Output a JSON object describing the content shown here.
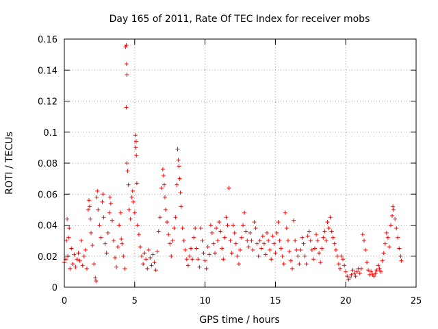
{
  "chart_data": {
    "type": "scatter",
    "title": "Day 165 of 2011, Rate Of TEC Index for receiver mobs",
    "xlabel": "GPS time / hours",
    "ylabel": "ROTI / TECUs",
    "xlim": [
      0,
      25
    ],
    "ylim": [
      0,
      0.16
    ],
    "x_ticks": [
      "0",
      "5",
      "10",
      "15",
      "20",
      "25"
    ],
    "y_ticks": [
      "0",
      "0.02",
      "0.04",
      "0.06",
      "0.08",
      "0.1",
      "0.12",
      "0.14",
      "0.16"
    ],
    "grid": true,
    "marker": "+",
    "color": "#ff0000",
    "series": [
      {
        "points": [
          [
            0.0,
            0.016
          ],
          [
            0.1,
            0.018
          ],
          [
            0.15,
            0.03
          ],
          [
            0.2,
            0.044
          ],
          [
            0.25,
            0.02
          ],
          [
            0.3,
            0.032
          ],
          [
            0.35,
            0.038
          ],
          [
            0.4,
            0.012
          ],
          [
            0.5,
            0.025
          ],
          [
            0.6,
            0.015
          ],
          [
            0.7,
            0.021
          ],
          [
            0.8,
            0.013
          ],
          [
            0.9,
            0.018
          ],
          [
            1.0,
            0.022
          ],
          [
            1.1,
            0.017
          ],
          [
            1.2,
            0.03
          ],
          [
            1.3,
            0.014
          ],
          [
            1.4,
            0.02
          ],
          [
            1.5,
            0.024
          ],
          [
            1.6,
            0.012
          ],
          [
            1.7,
            0.05
          ],
          [
            1.75,
            0.056
          ],
          [
            1.8,
            0.052
          ],
          [
            1.85,
            0.044
          ],
          [
            1.9,
            0.035
          ],
          [
            2.0,
            0.027
          ],
          [
            2.1,
            0.015
          ],
          [
            2.2,
            0.006
          ],
          [
            2.25,
            0.004
          ],
          [
            2.3,
            0.058
          ],
          [
            2.35,
            0.062
          ],
          [
            2.4,
            0.05
          ],
          [
            2.5,
            0.04
          ],
          [
            2.6,
            0.032
          ],
          [
            2.7,
            0.055
          ],
          [
            2.75,
            0.06
          ],
          [
            2.8,
            0.045
          ],
          [
            2.9,
            0.028
          ],
          [
            3.0,
            0.022
          ],
          [
            3.1,
            0.035
          ],
          [
            3.2,
            0.048
          ],
          [
            3.25,
            0.058
          ],
          [
            3.3,
            0.054
          ],
          [
            3.4,
            0.043
          ],
          [
            3.5,
            0.03
          ],
          [
            3.6,
            0.019
          ],
          [
            3.7,
            0.013
          ],
          [
            3.8,
            0.026
          ],
          [
            3.9,
            0.04
          ],
          [
            4.0,
            0.048
          ],
          [
            4.05,
            0.031
          ],
          [
            4.1,
            0.028
          ],
          [
            4.2,
            0.02
          ],
          [
            4.3,
            0.012
          ],
          [
            4.35,
            0.155
          ],
          [
            4.4,
            0.156
          ],
          [
            4.42,
            0.144
          ],
          [
            4.45,
            0.137
          ],
          [
            4.4,
            0.116
          ],
          [
            4.45,
            0.08
          ],
          [
            4.5,
            0.075
          ],
          [
            4.55,
            0.066
          ],
          [
            4.6,
            0.05
          ],
          [
            4.7,
            0.044
          ],
          [
            4.8,
            0.058
          ],
          [
            4.85,
            0.062
          ],
          [
            4.9,
            0.055
          ],
          [
            5.0,
            0.048
          ],
          [
            5.05,
            0.098
          ],
          [
            5.1,
            0.094
          ],
          [
            5.08,
            0.09
          ],
          [
            5.12,
            0.085
          ],
          [
            5.15,
            0.067
          ],
          [
            5.2,
            0.04
          ],
          [
            5.3,
            0.034
          ],
          [
            5.4,
            0.026
          ],
          [
            5.5,
            0.02
          ],
          [
            5.6,
            0.015
          ],
          [
            5.7,
            0.022
          ],
          [
            5.8,
            0.018
          ],
          [
            5.9,
            0.012
          ],
          [
            6.0,
            0.024
          ],
          [
            6.1,
            0.019
          ],
          [
            6.2,
            0.014
          ],
          [
            6.3,
            0.021
          ],
          [
            6.4,
            0.016
          ],
          [
            6.5,
            0.011
          ],
          [
            6.6,
            0.023
          ],
          [
            6.7,
            0.036
          ],
          [
            6.8,
            0.045
          ],
          [
            6.9,
            0.064
          ],
          [
            7.0,
            0.076
          ],
          [
            7.05,
            0.072
          ],
          [
            7.1,
            0.066
          ],
          [
            7.15,
            0.058
          ],
          [
            7.2,
            0.05
          ],
          [
            7.3,
            0.042
          ],
          [
            7.4,
            0.034
          ],
          [
            7.5,
            0.028
          ],
          [
            7.6,
            0.02
          ],
          [
            7.7,
            0.03
          ],
          [
            7.8,
            0.038
          ],
          [
            7.9,
            0.045
          ],
          [
            8.0,
            0.066
          ],
          [
            8.05,
            0.089
          ],
          [
            8.1,
            0.082
          ],
          [
            8.15,
            0.078
          ],
          [
            8.2,
            0.07
          ],
          [
            8.25,
            0.061
          ],
          [
            8.3,
            0.052
          ],
          [
            8.4,
            0.038
          ],
          [
            8.5,
            0.03
          ],
          [
            8.6,
            0.024
          ],
          [
            8.7,
            0.018
          ],
          [
            8.8,
            0.014
          ],
          [
            8.9,
            0.02
          ],
          [
            9.0,
            0.025
          ],
          [
            9.1,
            0.018
          ],
          [
            9.2,
            0.032
          ],
          [
            9.3,
            0.038
          ],
          [
            9.4,
            0.025
          ],
          [
            9.5,
            0.018
          ],
          [
            9.6,
            0.013
          ],
          [
            9.7,
            0.038
          ],
          [
            9.8,
            0.03
          ],
          [
            9.9,
            0.022
          ],
          [
            10.0,
            0.017
          ],
          [
            10.1,
            0.012
          ],
          [
            10.2,
            0.026
          ],
          [
            10.3,
            0.021
          ],
          [
            10.4,
            0.04
          ],
          [
            10.5,
            0.035
          ],
          [
            10.6,
            0.028
          ],
          [
            10.7,
            0.022
          ],
          [
            10.8,
            0.038
          ],
          [
            10.9,
            0.03
          ],
          [
            11.0,
            0.042
          ],
          [
            11.1,
            0.036
          ],
          [
            11.2,
            0.025
          ],
          [
            11.3,
            0.018
          ],
          [
            11.4,
            0.032
          ],
          [
            11.5,
            0.045
          ],
          [
            11.6,
            0.04
          ],
          [
            11.7,
            0.064
          ],
          [
            11.8,
            0.03
          ],
          [
            11.9,
            0.022
          ],
          [
            12.0,
            0.04
          ],
          [
            12.1,
            0.035
          ],
          [
            12.2,
            0.028
          ],
          [
            12.3,
            0.02
          ],
          [
            12.4,
            0.015
          ],
          [
            12.5,
            0.024
          ],
          [
            12.6,
            0.032
          ],
          [
            12.7,
            0.04
          ],
          [
            12.8,
            0.048
          ],
          [
            12.9,
            0.036
          ],
          [
            13.0,
            0.03
          ],
          [
            13.1,
            0.026
          ],
          [
            13.2,
            0.035
          ],
          [
            13.3,
            0.03
          ],
          [
            13.4,
            0.024
          ],
          [
            13.5,
            0.042
          ],
          [
            13.6,
            0.038
          ],
          [
            13.7,
            0.028
          ],
          [
            13.8,
            0.02
          ],
          [
            13.9,
            0.03
          ],
          [
            14.0,
            0.025
          ],
          [
            14.1,
            0.033
          ],
          [
            14.2,
            0.028
          ],
          [
            14.3,
            0.021
          ],
          [
            14.4,
            0.035
          ],
          [
            14.5,
            0.03
          ],
          [
            14.6,
            0.024
          ],
          [
            14.7,
            0.018
          ],
          [
            14.8,
            0.033
          ],
          [
            14.9,
            0.028
          ],
          [
            15.0,
            0.022
          ],
          [
            15.1,
            0.035
          ],
          [
            15.2,
            0.042
          ],
          [
            15.3,
            0.03
          ],
          [
            15.4,
            0.025
          ],
          [
            15.5,
            0.02
          ],
          [
            15.6,
            0.015
          ],
          [
            15.7,
            0.048
          ],
          [
            15.8,
            0.038
          ],
          [
            15.9,
            0.03
          ],
          [
            16.0,
            0.023
          ],
          [
            16.1,
            0.017
          ],
          [
            16.2,
            0.012
          ],
          [
            16.3,
            0.043
          ],
          [
            16.4,
            0.03
          ],
          [
            16.5,
            0.024
          ],
          [
            16.6,
            0.02
          ],
          [
            16.7,
            0.015
          ],
          [
            16.8,
            0.024
          ],
          [
            16.9,
            0.032
          ],
          [
            17.0,
            0.028
          ],
          [
            17.1,
            0.02
          ],
          [
            17.2,
            0.015
          ],
          [
            17.3,
            0.033
          ],
          [
            17.4,
            0.036
          ],
          [
            17.5,
            0.03
          ],
          [
            17.6,
            0.024
          ],
          [
            17.7,
            0.018
          ],
          [
            17.8,
            0.025
          ],
          [
            17.9,
            0.034
          ],
          [
            18.0,
            0.03
          ],
          [
            18.1,
            0.022
          ],
          [
            18.2,
            0.016
          ],
          [
            18.3,
            0.025
          ],
          [
            18.4,
            0.032
          ],
          [
            18.5,
            0.036
          ],
          [
            18.6,
            0.03
          ],
          [
            18.7,
            0.042
          ],
          [
            18.8,
            0.038
          ],
          [
            18.9,
            0.045
          ],
          [
            19.0,
            0.036
          ],
          [
            19.1,
            0.032
          ],
          [
            19.2,
            0.028
          ],
          [
            19.3,
            0.024
          ],
          [
            19.4,
            0.02
          ],
          [
            19.5,
            0.015
          ],
          [
            19.6,
            0.012
          ],
          [
            19.7,
            0.02
          ],
          [
            19.8,
            0.018
          ],
          [
            19.9,
            0.014
          ],
          [
            20.0,
            0.01
          ],
          [
            20.1,
            0.007
          ],
          [
            20.2,
            0.005
          ],
          [
            20.3,
            0.006
          ],
          [
            20.4,
            0.008
          ],
          [
            20.5,
            0.011
          ],
          [
            20.6,
            0.009
          ],
          [
            20.7,
            0.007
          ],
          [
            20.8,
            0.01
          ],
          [
            20.9,
            0.012
          ],
          [
            21.0,
            0.009
          ],
          [
            21.1,
            0.012
          ],
          [
            21.2,
            0.034
          ],
          [
            21.3,
            0.03
          ],
          [
            21.4,
            0.024
          ],
          [
            21.5,
            0.016
          ],
          [
            21.6,
            0.011
          ],
          [
            21.7,
            0.008
          ],
          [
            21.8,
            0.01
          ],
          [
            21.9,
            0.008
          ],
          [
            22.0,
            0.007
          ],
          [
            22.1,
            0.009
          ],
          [
            22.2,
            0.011
          ],
          [
            22.3,
            0.014
          ],
          [
            22.4,
            0.012
          ],
          [
            22.5,
            0.01
          ],
          [
            22.6,
            0.017
          ],
          [
            22.7,
            0.022
          ],
          [
            22.8,
            0.028
          ],
          [
            22.9,
            0.035
          ],
          [
            23.0,
            0.032
          ],
          [
            23.1,
            0.026
          ],
          [
            23.2,
            0.04
          ],
          [
            23.3,
            0.046
          ],
          [
            23.35,
            0.052
          ],
          [
            23.4,
            0.05
          ],
          [
            23.5,
            0.044
          ],
          [
            23.6,
            0.038
          ],
          [
            23.7,
            0.032
          ],
          [
            23.8,
            0.025
          ],
          [
            23.9,
            0.02
          ],
          [
            23.95,
            0.017
          ]
        ]
      }
    ]
  }
}
